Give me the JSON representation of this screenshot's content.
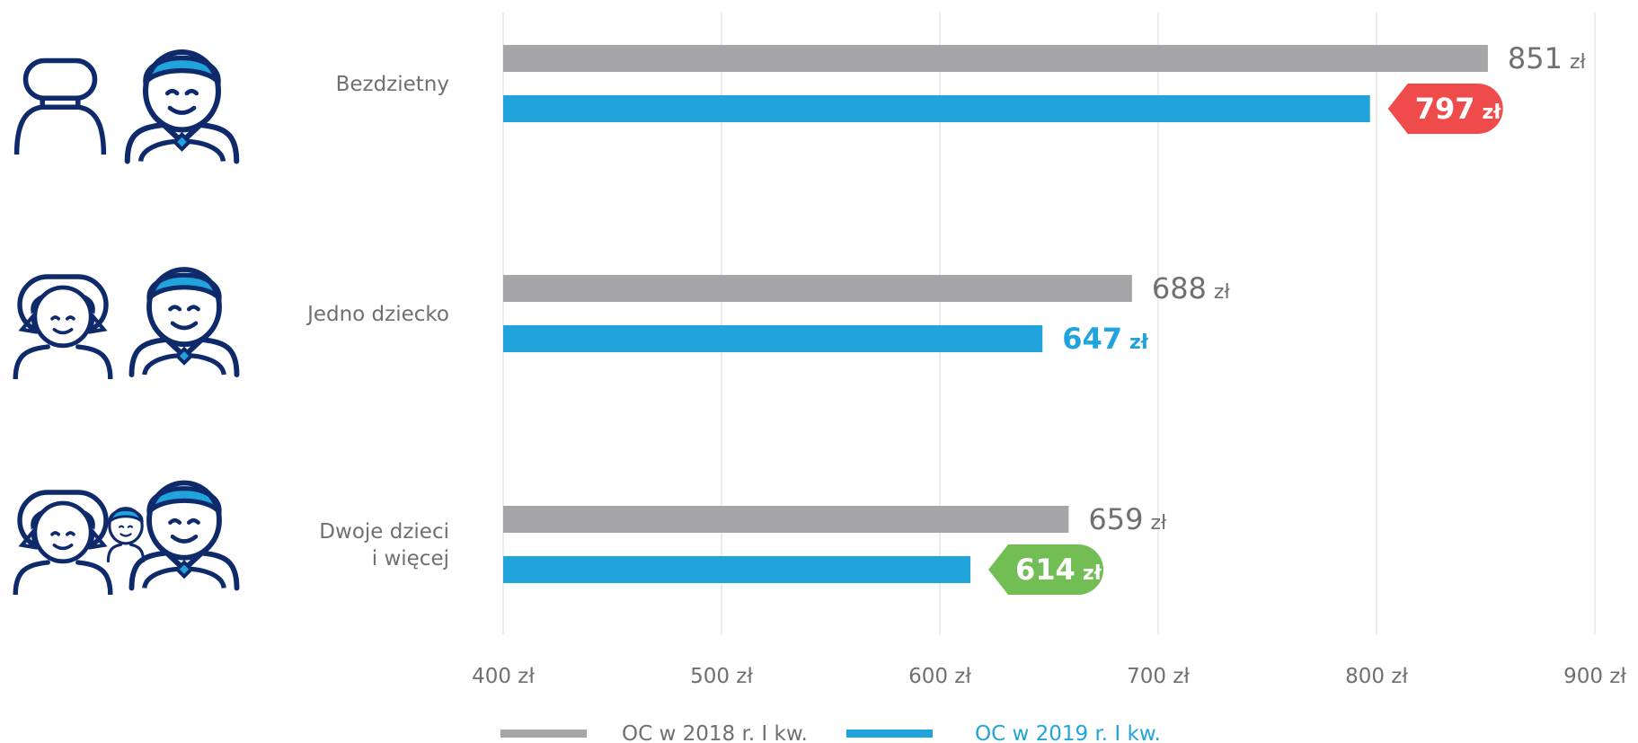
{
  "colors": {
    "series_2018": "#a6a6a9",
    "series_2019": "#21a3dc",
    "badge_red": "#f04b4b",
    "badge_green": "#73bd55",
    "text_gray": "#6f6f74",
    "icon_navy": "#0e2a6b",
    "icon_blue": "#21a3dc",
    "grid": "#e6e6e6"
  },
  "chart_data": {
    "type": "bar",
    "orientation": "horizontal",
    "categories": [
      "Bezdzietny",
      "Jedno dziecko",
      "Dwoje dzieci i więcej"
    ],
    "category_label_lines": [
      [
        "Bezdzietny"
      ],
      [
        "Jedno dziecko"
      ],
      [
        "Dwoje dzieci",
        "i więcej"
      ]
    ],
    "series": [
      {
        "name": "OC w 2018 r. I kw.",
        "values": [
          851,
          688,
          659
        ]
      },
      {
        "name": "OC w 2019 r. I kw.",
        "values": [
          797,
          647,
          614
        ]
      }
    ],
    "value_labels": [
      [
        {
          "number": "851",
          "unit": "zł"
        },
        {
          "number": "688",
          "unit": "zł"
        },
        {
          "number": "659",
          "unit": "zł"
        }
      ],
      [
        {
          "number": "797",
          "unit": "zł",
          "badge": "red"
        },
        {
          "number": "647",
          "unit": "zł"
        },
        {
          "number": "614",
          "unit": "zł",
          "badge": "green"
        }
      ]
    ],
    "xlim": [
      400,
      900
    ],
    "xticks": [
      400,
      500,
      600,
      700,
      800,
      900
    ],
    "xtick_labels": [
      "400 zł",
      "500 zł",
      "600 zł",
      "700 zł",
      "800 zł",
      "900 zł"
    ],
    "grid": true,
    "legend_position": "bottom",
    "category_icons": [
      [
        "empty-seat-icon",
        "driver-icon"
      ],
      [
        "girl-icon",
        "driver-icon"
      ],
      [
        "girl-icon",
        "boy-icon",
        "driver-icon"
      ]
    ]
  }
}
